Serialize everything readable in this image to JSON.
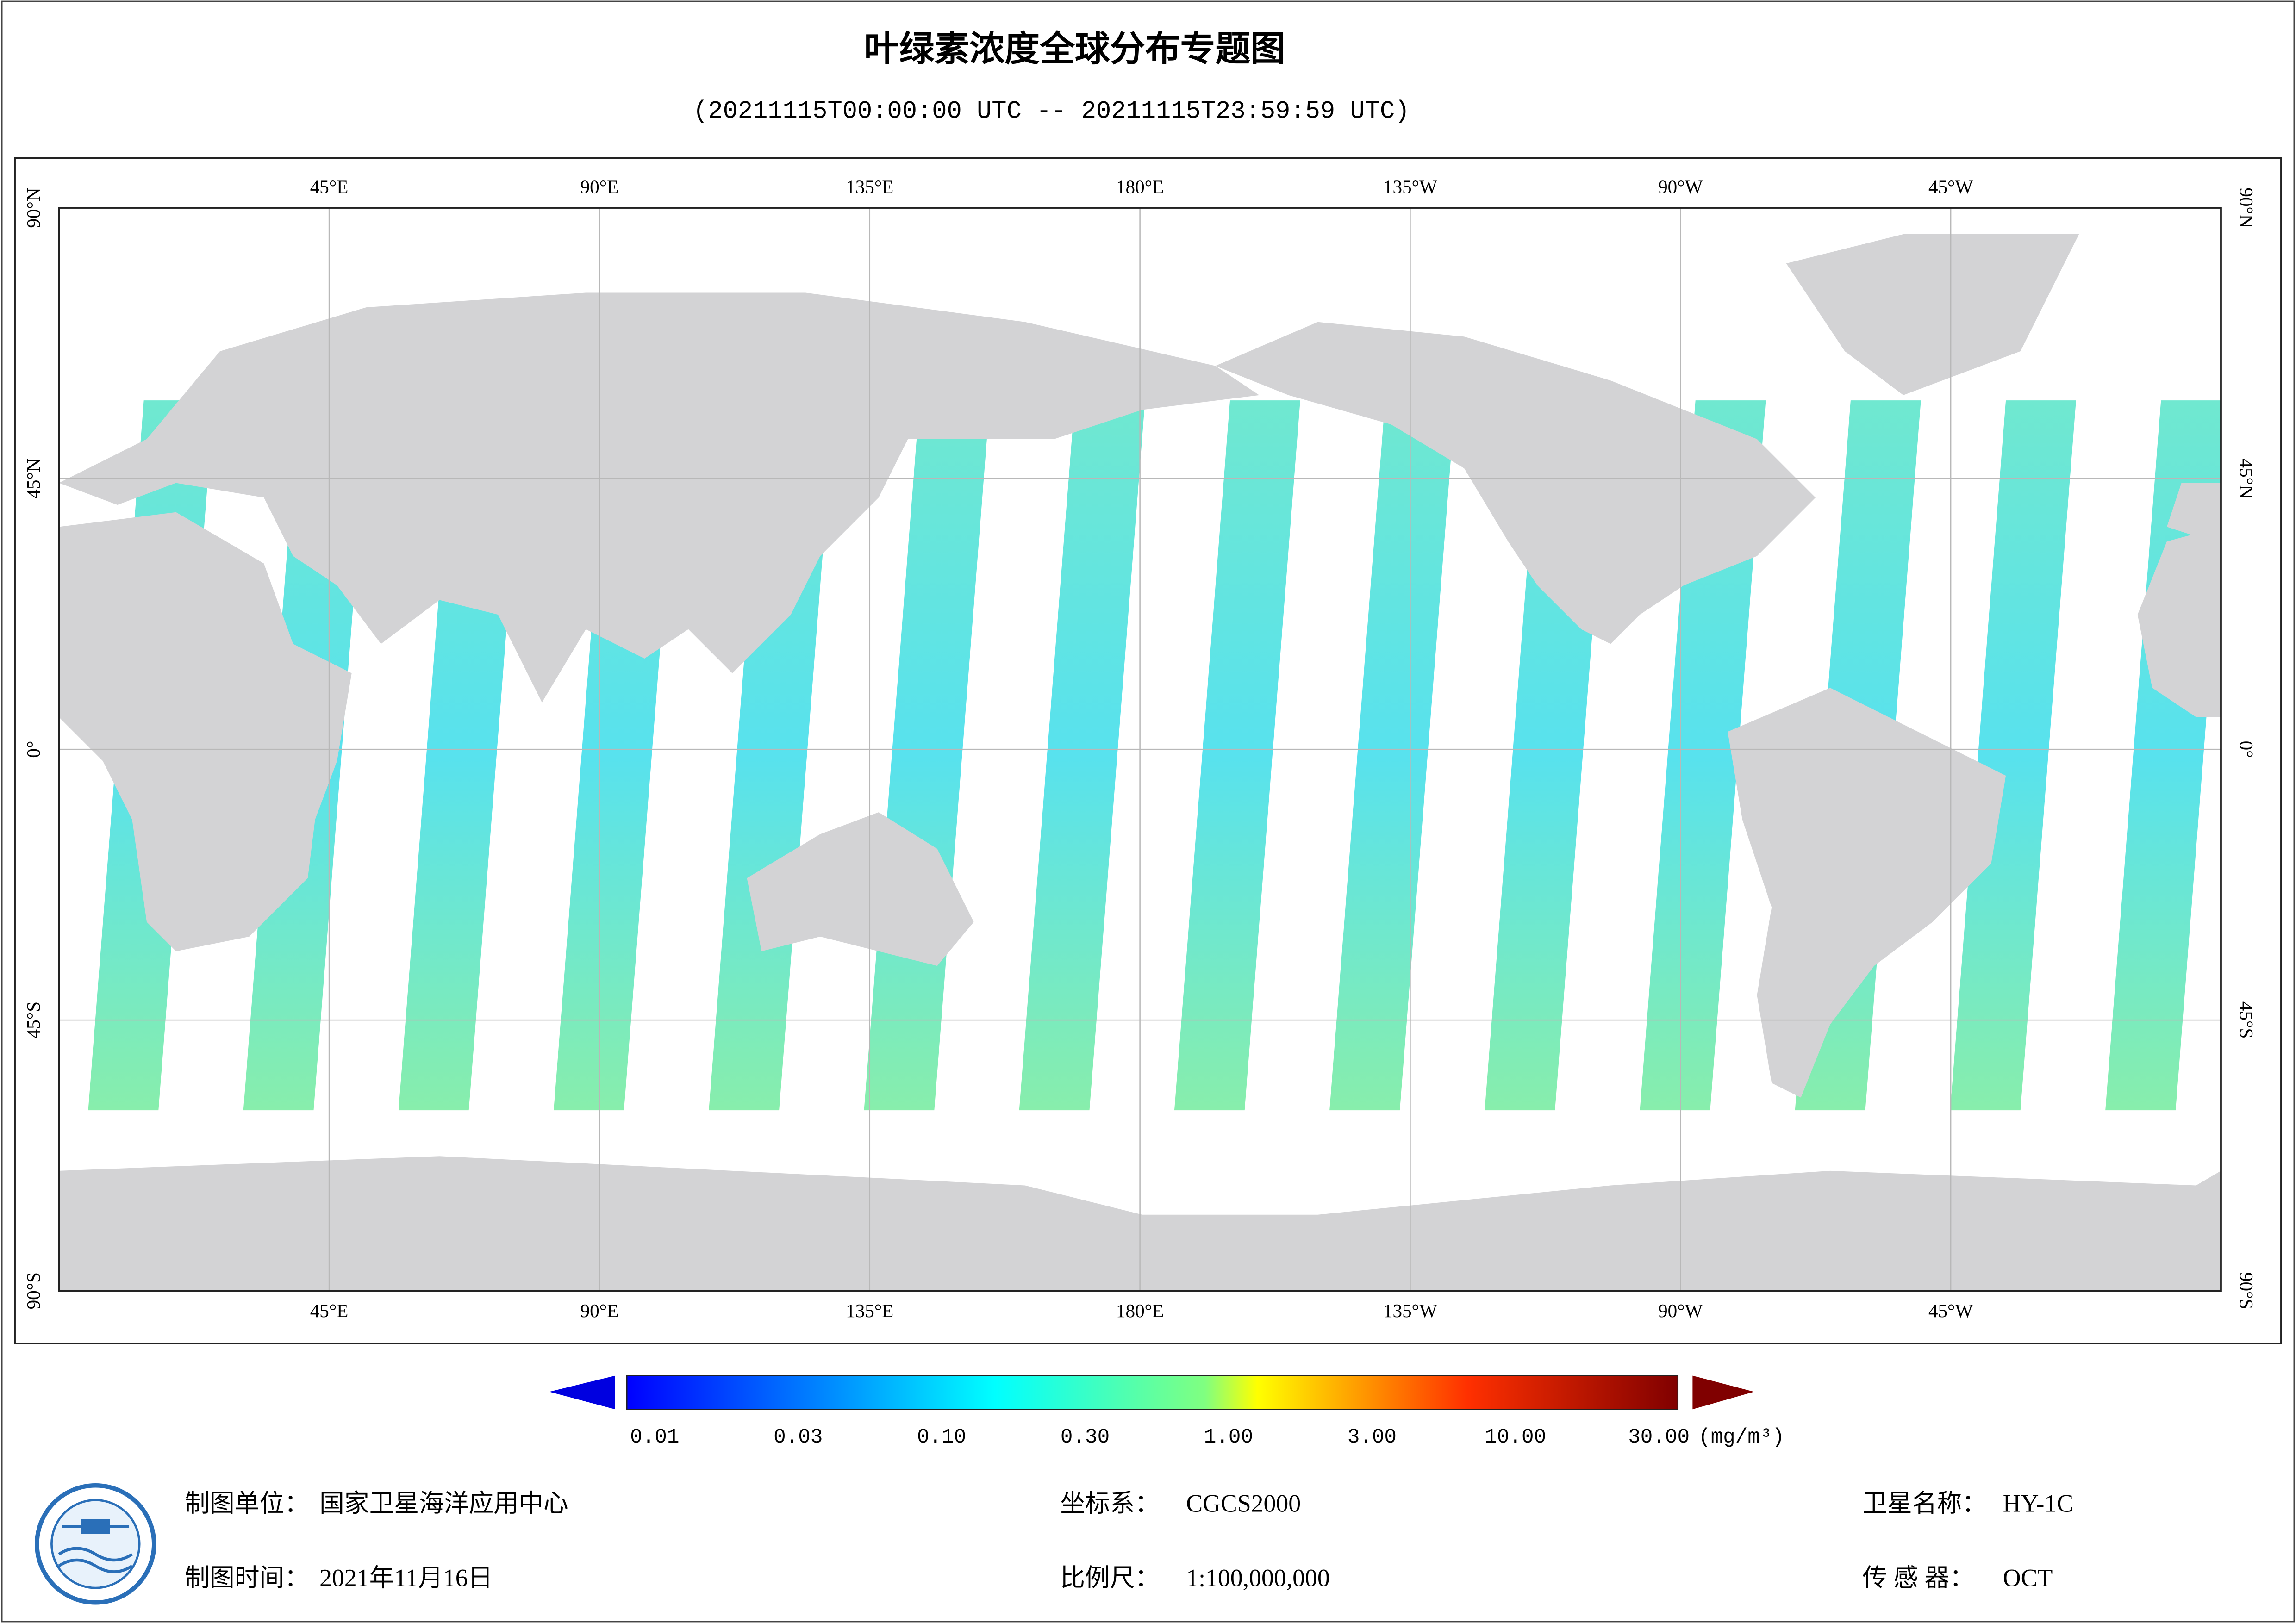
{
  "title": "叶绿素浓度全球分布专题图",
  "subtitle": "(20211115T00:00:00 UTC -- 20211115T23:59:59 UTC)",
  "map": {
    "lon_labels": [
      "45°E",
      "90°E",
      "135°E",
      "180°E",
      "135°W",
      "90°W",
      "45°W"
    ],
    "lat_labels": [
      "90°N",
      "45°N",
      "0°",
      "45°S",
      "90°S"
    ]
  },
  "colorbar": {
    "ticks": [
      "0.01",
      "0.03",
      "0.10",
      "0.30",
      "1.00",
      "3.00",
      "10.00",
      "30.00"
    ],
    "unit": "(mg/m³)"
  },
  "footer": {
    "items": [
      {
        "label": "制图单位：",
        "value": "国家卫星海洋应用中心"
      },
      {
        "label": "制图时间：",
        "value": "2021年11月16日"
      },
      {
        "label": "坐标系：",
        "value": "CGCS2000"
      },
      {
        "label": "比例尺：",
        "value": "1:100,000,000"
      },
      {
        "label": "卫星名称：",
        "value": "HY-1C"
      },
      {
        "label": "传 感 器：",
        "value": "OCT"
      }
    ]
  }
}
